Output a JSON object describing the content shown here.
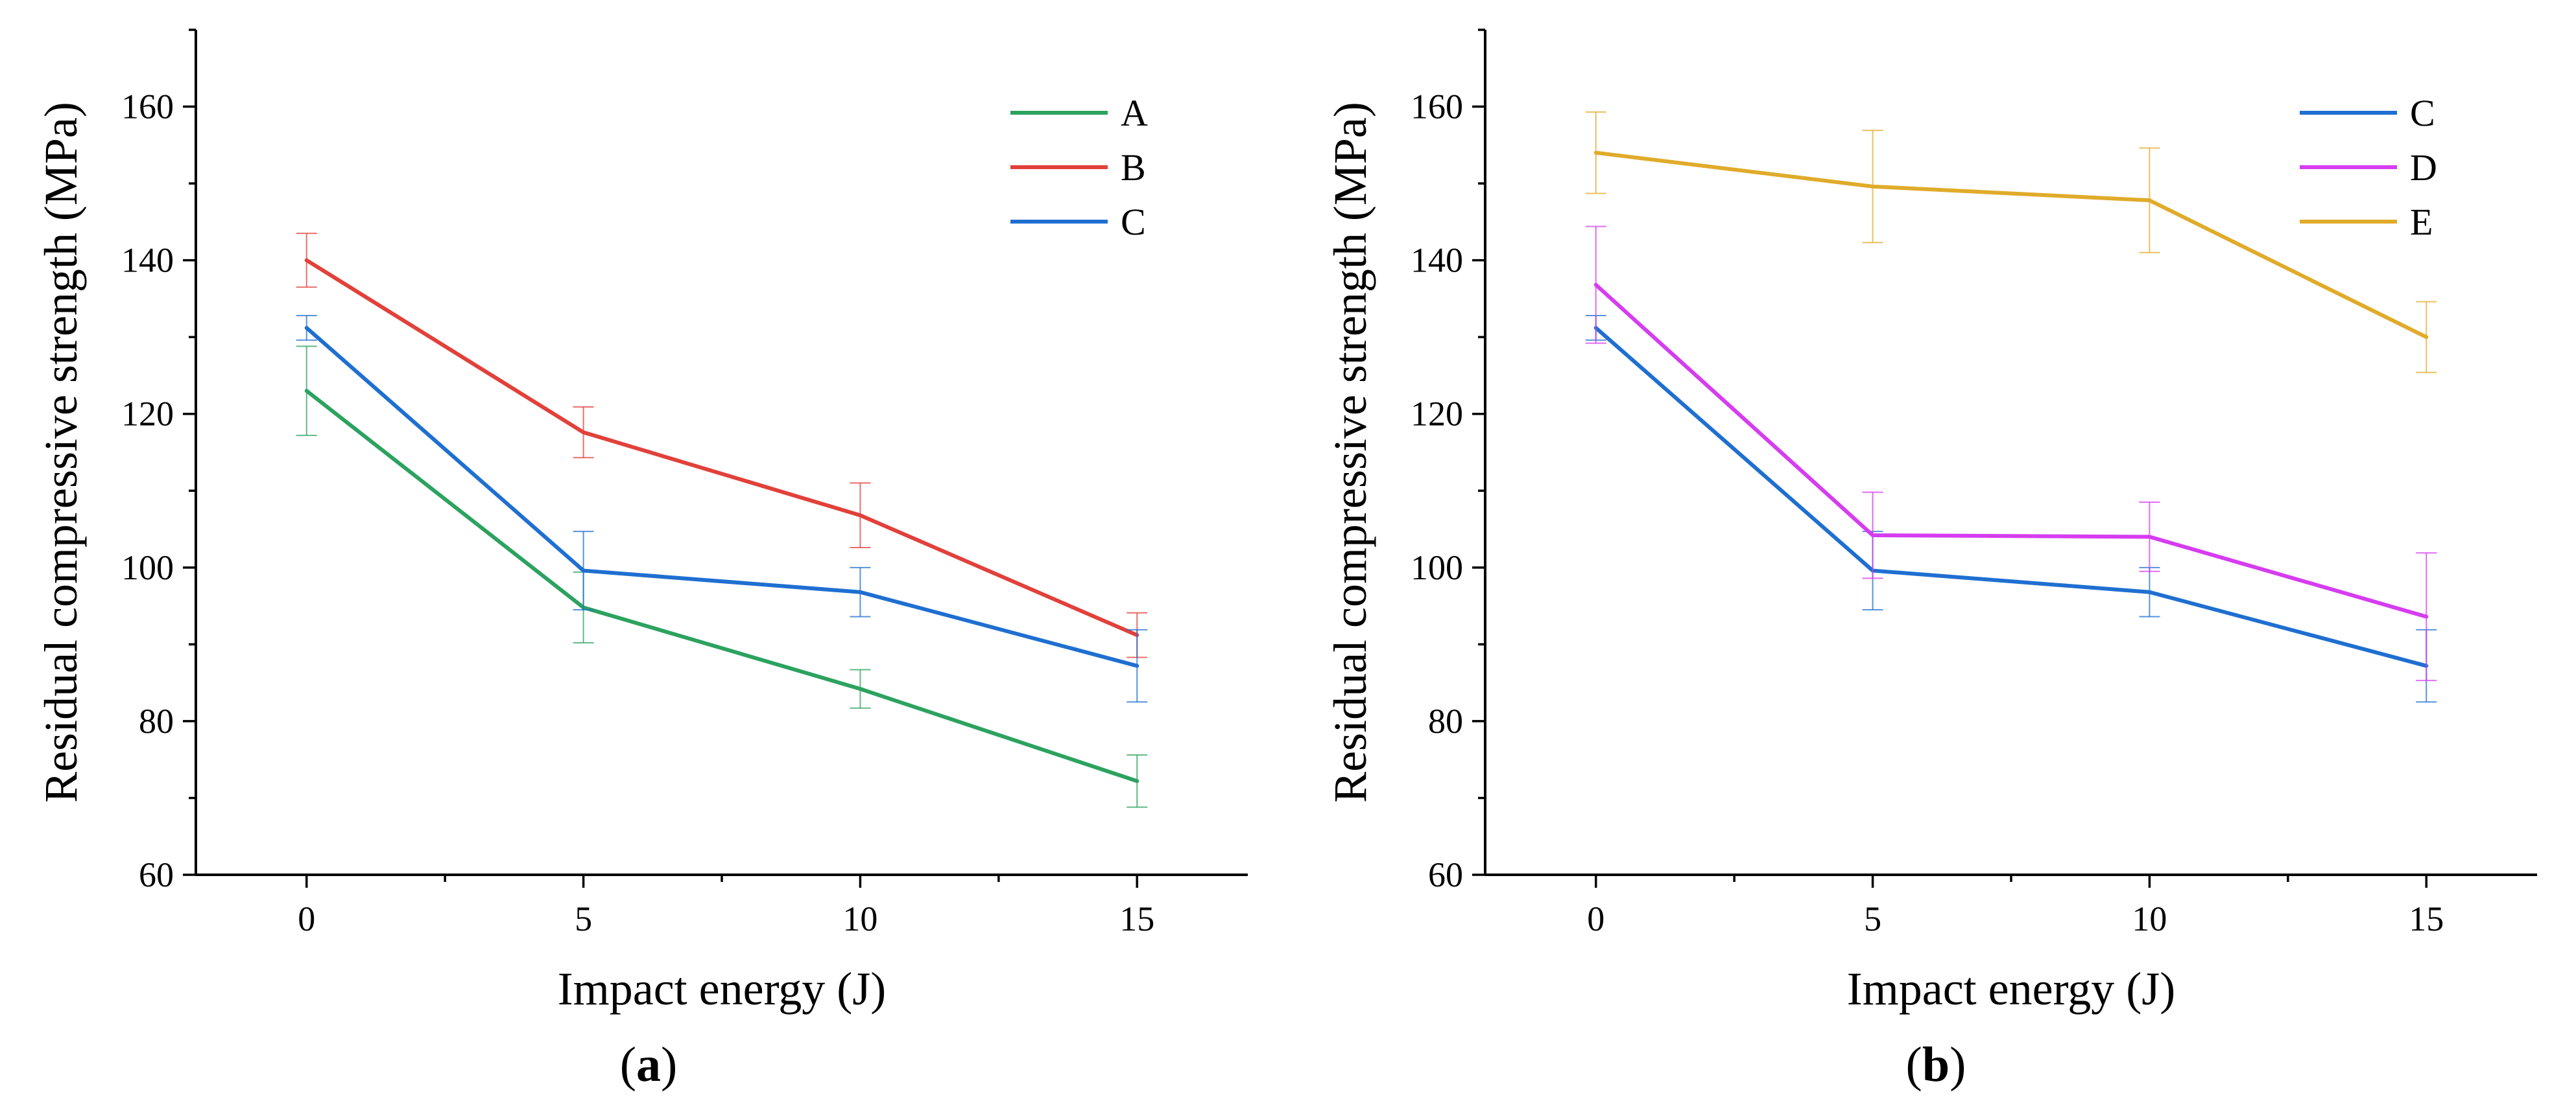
{
  "chart_data": [
    {
      "type": "line",
      "panel_label": "a",
      "xlabel": "Impact energy (J)",
      "ylabel": "Residual compressive strength (MPa)",
      "x": [
        0,
        5,
        10,
        15
      ],
      "xticks": [
        0,
        5,
        10,
        15
      ],
      "xlim": [
        -2,
        17
      ],
      "ylim": [
        60,
        170
      ],
      "yticks": [
        60,
        80,
        100,
        120,
        140,
        160
      ],
      "grid": false,
      "legend_position": "top-right",
      "series": [
        {
          "name": "A",
          "color": "#2ca25f",
          "values": [
            123,
            94.8,
            84.2,
            72.2
          ],
          "errors": [
            5.8,
            4.6,
            2.5,
            3.4
          ]
        },
        {
          "name": "B",
          "color": "#e2403a",
          "values": [
            140,
            117.6,
            106.8,
            91.2
          ],
          "errors": [
            3.5,
            3.3,
            4.2,
            2.9
          ]
        },
        {
          "name": "C",
          "color": "#1f6fd1",
          "values": [
            131.2,
            99.6,
            96.8,
            87.2
          ],
          "errors": [
            1.6,
            5.1,
            3.2,
            4.7
          ]
        }
      ]
    },
    {
      "type": "line",
      "panel_label": "b",
      "xlabel": "Impact energy (J)",
      "ylabel": "Residual compressive strength (MPa)",
      "x": [
        0,
        5,
        10,
        15
      ],
      "xticks": [
        0,
        5,
        10,
        15
      ],
      "xlim": [
        -2,
        17
      ],
      "ylim": [
        60,
        170
      ],
      "yticks": [
        60,
        80,
        100,
        120,
        140,
        160
      ],
      "grid": false,
      "legend_position": "top-right",
      "series": [
        {
          "name": "C",
          "color": "#1f6fd1",
          "values": [
            131.2,
            99.6,
            96.8,
            87.2
          ],
          "errors": [
            1.6,
            5.1,
            3.2,
            4.7
          ]
        },
        {
          "name": "D",
          "color": "#d63cf0",
          "values": [
            136.8,
            104.2,
            104.0,
            93.6
          ],
          "errors": [
            7.6,
            5.6,
            4.5,
            8.3
          ]
        },
        {
          "name": "E",
          "color": "#e0ab2a",
          "values": [
            154,
            149.6,
            147.8,
            130
          ],
          "errors": [
            5.3,
            7.3,
            6.8,
            4.6
          ]
        }
      ]
    }
  ]
}
